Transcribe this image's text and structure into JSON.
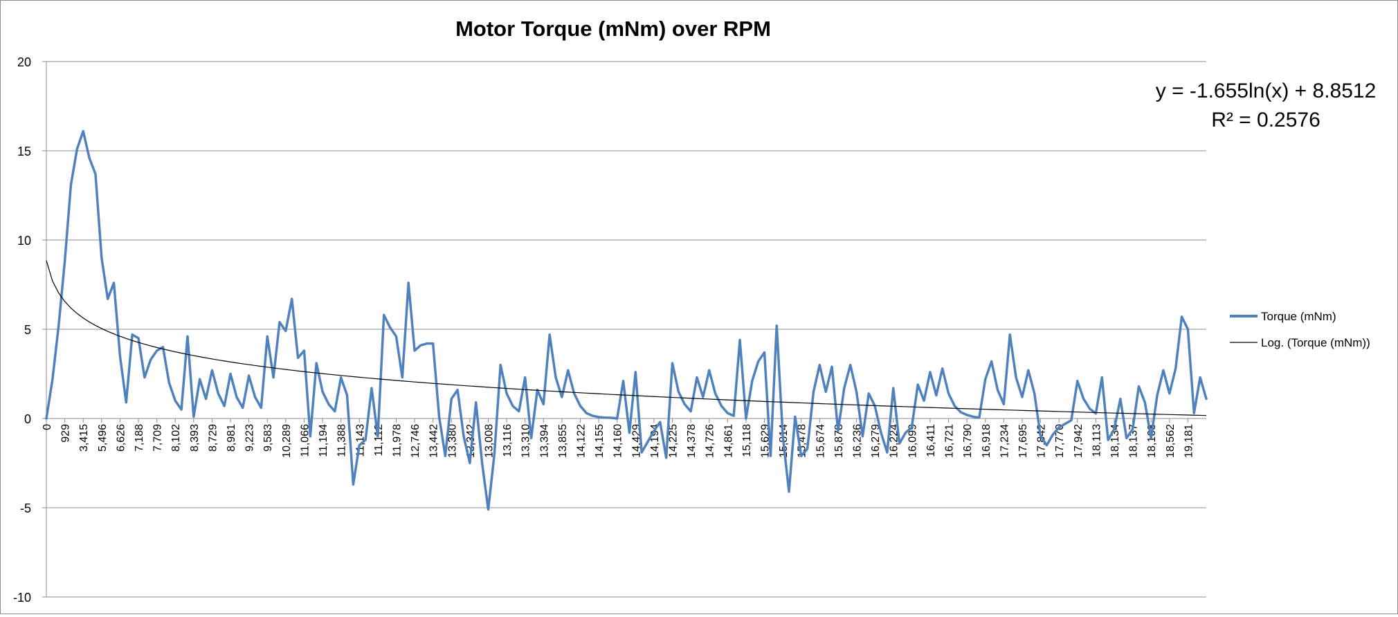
{
  "chart_data": {
    "type": "line",
    "title": "Motor Torque (mNm) over RPM",
    "xlabel": "",
    "ylabel": "",
    "ylim": [
      -10,
      20
    ],
    "yticks": [
      20,
      15,
      10,
      5,
      0,
      -5,
      -10
    ],
    "grid": true,
    "legend_position": "right",
    "x_tick_labels": [
      "0",
      "929",
      "3,415",
      "5,496",
      "6,626",
      "7,188",
      "7,709",
      "8,102",
      "8,393",
      "8,729",
      "8,981",
      "9,223",
      "9,583",
      "10,289",
      "11,066",
      "11,194",
      "11,388",
      "11,143",
      "11,112",
      "11,978",
      "12,746",
      "13,442",
      "13,380",
      "13,342",
      "13,008",
      "13,116",
      "13,310",
      "13,394",
      "13,855",
      "14,122",
      "14,155",
      "14,160",
      "14,429",
      "14,194",
      "14,225",
      "14,378",
      "14,726",
      "14,861",
      "15,118",
      "15,629",
      "15,814",
      "15,478",
      "15,674",
      "15,878",
      "16,236",
      "16,279",
      "16,224",
      "16,099",
      "16,411",
      "16,721",
      "16,790",
      "16,918",
      "17,234",
      "17,695",
      "17,842",
      "17,770",
      "17,942",
      "18,113",
      "18,134",
      "18,137",
      "18,168",
      "18,562",
      "19,181"
    ],
    "series": [
      {
        "name": "Torque (mNm)",
        "color": "#4f81bd",
        "values": [
          0,
          2.2,
          5.2,
          8.8,
          13.1,
          15.1,
          16.1,
          14.6,
          13.7,
          9.0,
          6.7,
          7.6,
          3.5,
          0.9,
          4.7,
          4.5,
          2.3,
          3.3,
          3.8,
          4.0,
          2.0,
          1.0,
          0.5,
          4.6,
          0.1,
          2.2,
          1.1,
          2.7,
          1.4,
          0.7,
          2.5,
          1.2,
          0.6,
          2.4,
          1.2,
          0.6,
          4.6,
          2.3,
          5.4,
          4.9,
          6.7,
          3.4,
          3.8,
          -1.0,
          3.1,
          1.5,
          0.8,
          0.4,
          2.3,
          1.3,
          -3.7,
          -1.5,
          -1.2,
          1.7,
          -1.0,
          5.8,
          5.1,
          4.6,
          2.3,
          7.6,
          3.8,
          4.1,
          4.2,
          4.2,
          0.1,
          -2.1,
          1.1,
          1.6,
          -1.0,
          -2.5,
          0.9,
          -2.5,
          -5.1,
          -2.0,
          3.0,
          1.4,
          0.7,
          0.4,
          2.3,
          -1.1,
          1.6,
          0.8,
          4.7,
          2.3,
          1.2,
          2.7,
          1.4,
          0.7,
          0.3,
          0.15,
          0.08,
          0.05,
          0.04,
          0.0,
          2.1,
          -0.8,
          2.6,
          -1.9,
          -1.3,
          -0.7,
          -0.2,
          -2.2,
          3.1,
          1.5,
          0.8,
          0.4,
          2.3,
          1.2,
          2.7,
          1.4,
          0.7,
          0.3,
          0.15,
          4.4,
          0.0,
          2.1,
          3.2,
          3.7,
          -2.1,
          5.2,
          -1.0,
          -4.1,
          0.1,
          -2.1,
          -1.7,
          1.5,
          3.0,
          1.5,
          2.9,
          -0.7,
          1.7,
          3.0,
          1.5,
          -1.0,
          1.4,
          0.7,
          -0.8,
          -1.9,
          1.7,
          -1.4,
          -0.8,
          -0.5,
          1.9,
          1.0,
          2.6,
          1.3,
          2.8,
          1.4,
          0.7,
          0.35,
          0.2,
          0.1,
          0.05,
          2.2,
          3.2,
          1.6,
          0.8,
          4.7,
          2.3,
          1.2,
          2.7,
          1.4,
          -1.0,
          -1.5,
          -0.9,
          -0.5,
          -0.3,
          -0.1,
          2.1,
          1.1,
          0.55,
          0.28,
          2.3,
          -1.2,
          -0.6,
          1.1,
          -1.1,
          -0.6,
          1.8,
          0.9,
          -1.1,
          1.3,
          2.7,
          1.4,
          2.8,
          5.7,
          5.0,
          0.3,
          2.3,
          1.1
        ]
      }
    ],
    "trendline": {
      "name": "Log. (Torque (mNm))",
      "type": "logarithmic",
      "color": "#000000",
      "a": -1.655,
      "b": 8.8512,
      "equation_label": "y = -1.655ln(x) + 8.8512",
      "r2_label": "R² = 0.2576"
    }
  }
}
